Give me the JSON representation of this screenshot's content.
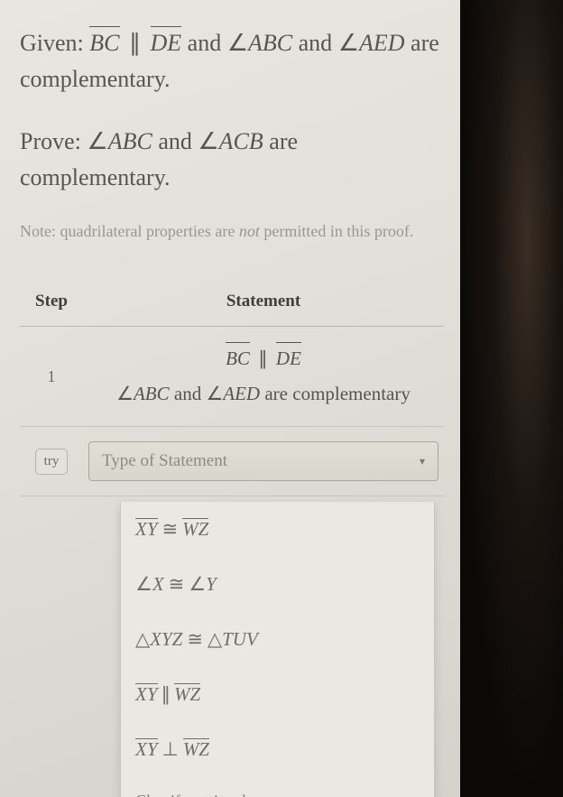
{
  "given": {
    "prefix": "Given: ",
    "seg1": "BC",
    "parallel": "∥",
    "seg2": "DE",
    "mid": " and ",
    "angle_sym": "∠",
    "ang1": "ABC",
    "and2": " and ",
    "ang2": "AED",
    "tail": " are complementary."
  },
  "prove": {
    "prefix": "Prove: ",
    "angle_sym": "∠",
    "ang1": "ABC",
    "and": " and ",
    "ang2": "ACB",
    "tail": " are complementary."
  },
  "note": {
    "pre": "Note: quadrilateral properties are ",
    "not": "not",
    "post": " permitted in this proof."
  },
  "table": {
    "headers": {
      "step": "Step",
      "statement": "Statement"
    },
    "row1": {
      "num": "1",
      "line1": {
        "seg1": "BC",
        "par": "∥",
        "seg2": "DE"
      },
      "line2": {
        "asym": "∠",
        "a1": "ABC",
        "mid": " and ",
        "a2": "AED",
        "tail": " are complementary"
      }
    },
    "row2": {
      "try": "try",
      "placeholder": "Type of Statement"
    }
  },
  "dropdown": {
    "o1": {
      "seg1": "XY",
      "cong": "≅",
      "seg2": "WZ"
    },
    "o2": {
      "asym": "∠",
      "x": "X",
      "cong": "≅",
      "y": "Y"
    },
    "o3": {
      "tri": "△",
      "t1": "XYZ",
      "cong": "≅",
      "t2": "TUV"
    },
    "o4": {
      "seg1": "XY",
      "par": "∥",
      "seg2": "WZ"
    },
    "o5": {
      "seg1": "XY",
      "perp": "⊥",
      "seg2": "WZ"
    },
    "o6": "Classify a triangle"
  },
  "colors": {
    "page_bg": "#e3e0da",
    "text": "#565650",
    "muted": "#9a978e",
    "border": "#b9b6af",
    "dark": "#0b0908"
  }
}
